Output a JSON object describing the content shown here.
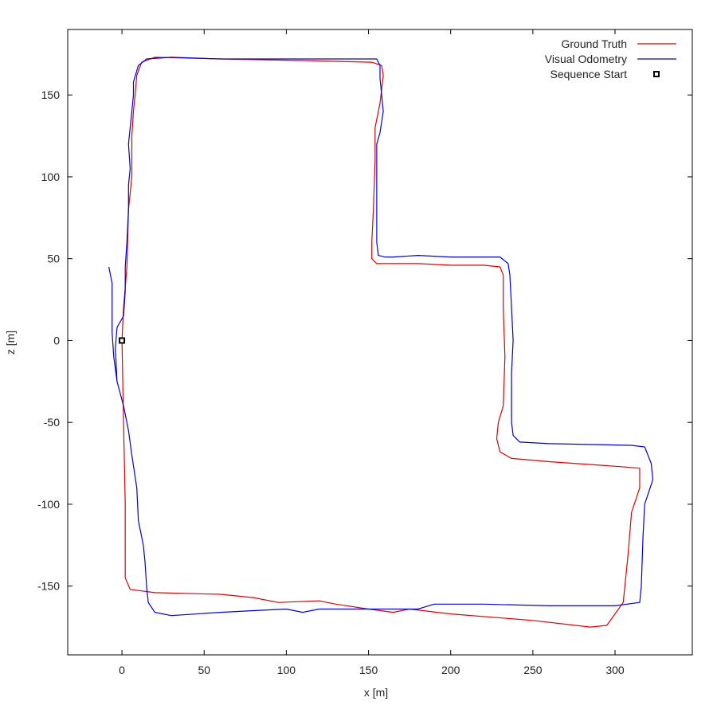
{
  "chart_data": {
    "type": "line",
    "title": "",
    "xlabel": "x [m]",
    "ylabel": "z [m]",
    "xlim": [
      -33,
      347
    ],
    "ylim": [
      -192,
      190
    ],
    "x_ticks": [
      0,
      50,
      100,
      150,
      200,
      250,
      300
    ],
    "y_ticks": [
      -150,
      -100,
      -50,
      0,
      50,
      100,
      150
    ],
    "x_tick_labels": [
      "0",
      "50",
      "100",
      "150",
      "200",
      "250",
      "300"
    ],
    "y_tick_labels": [
      "-150",
      "-100",
      "-50",
      "0",
      "50",
      "100",
      "150"
    ],
    "grid": false,
    "legend_position": "top-right",
    "series": [
      {
        "name": "Ground Truth",
        "color": "#e00000",
        "points": [
          [
            0,
            0
          ],
          [
            1,
            -50
          ],
          [
            2,
            -100
          ],
          [
            2,
            -145
          ],
          [
            5,
            -152
          ],
          [
            20,
            -154
          ],
          [
            60,
            -155
          ],
          [
            80,
            -157
          ],
          [
            95,
            -160
          ],
          [
            120,
            -159
          ],
          [
            130,
            -161
          ],
          [
            150,
            -164
          ],
          [
            165,
            -166
          ],
          [
            175,
            -164
          ],
          [
            200,
            -167
          ],
          [
            250,
            -171
          ],
          [
            285,
            -175
          ],
          [
            295,
            -174
          ],
          [
            305,
            -160
          ],
          [
            308,
            -130
          ],
          [
            310,
            -105
          ],
          [
            315,
            -90
          ],
          [
            315,
            -78
          ],
          [
            303,
            -77
          ],
          [
            260,
            -74
          ],
          [
            237,
            -72
          ],
          [
            230,
            -68
          ],
          [
            228,
            -60
          ],
          [
            229,
            -50
          ],
          [
            232,
            -40
          ],
          [
            233,
            -10
          ],
          [
            232,
            20
          ],
          [
            232,
            40
          ],
          [
            230,
            45
          ],
          [
            220,
            46
          ],
          [
            200,
            46
          ],
          [
            180,
            47
          ],
          [
            155,
            47
          ],
          [
            152,
            50
          ],
          [
            152,
            60
          ],
          [
            153,
            80
          ],
          [
            154,
            110
          ],
          [
            154,
            130
          ],
          [
            157,
            145
          ],
          [
            159,
            162
          ],
          [
            158,
            168
          ],
          [
            152,
            170
          ],
          [
            110,
            171
          ],
          [
            60,
            172
          ],
          [
            20,
            173
          ],
          [
            12,
            170
          ],
          [
            9,
            162
          ],
          [
            8,
            150
          ],
          [
            7,
            140
          ],
          [
            6,
            125
          ],
          [
            6,
            110
          ],
          [
            6,
            100
          ],
          [
            4,
            80
          ],
          [
            3,
            45
          ],
          [
            1,
            20
          ],
          [
            0,
            0
          ]
        ]
      },
      {
        "name": "Visual Odometry",
        "color": "#0000d8",
        "points": [
          [
            -8,
            45
          ],
          [
            -6,
            35
          ],
          [
            -6,
            20
          ],
          [
            -6,
            5
          ],
          [
            -5,
            -10
          ],
          [
            -3,
            -25
          ],
          [
            1,
            -40
          ],
          [
            4,
            -55
          ],
          [
            6,
            -70
          ],
          [
            9,
            -90
          ],
          [
            10,
            -110
          ],
          [
            13,
            -125
          ],
          [
            14,
            -135
          ],
          [
            15,
            -150
          ],
          [
            16,
            -160
          ],
          [
            20,
            -166
          ],
          [
            30,
            -168
          ],
          [
            60,
            -166
          ],
          [
            80,
            -165
          ],
          [
            100,
            -164
          ],
          [
            110,
            -166
          ],
          [
            120,
            -164
          ],
          [
            140,
            -164
          ],
          [
            165,
            -164
          ],
          [
            180,
            -164
          ],
          [
            190,
            -161
          ],
          [
            220,
            -161
          ],
          [
            260,
            -162
          ],
          [
            300,
            -162
          ],
          [
            315,
            -160
          ],
          [
            316,
            -150
          ],
          [
            317,
            -120
          ],
          [
            318,
            -100
          ],
          [
            323,
            -85
          ],
          [
            322,
            -75
          ],
          [
            318,
            -65
          ],
          [
            310,
            -64
          ],
          [
            260,
            -63
          ],
          [
            242,
            -62
          ],
          [
            238,
            -58
          ],
          [
            237,
            -50
          ],
          [
            237,
            -20
          ],
          [
            238,
            0
          ],
          [
            237,
            20
          ],
          [
            236,
            40
          ],
          [
            235,
            47
          ],
          [
            230,
            51
          ],
          [
            200,
            51
          ],
          [
            180,
            52
          ],
          [
            165,
            51
          ],
          [
            160,
            51
          ],
          [
            156,
            52
          ],
          [
            155,
            60
          ],
          [
            155,
            80
          ],
          [
            155,
            100
          ],
          [
            155,
            120
          ],
          [
            157,
            127
          ],
          [
            159,
            140
          ],
          [
            158,
            150
          ],
          [
            157,
            160
          ],
          [
            157,
            168
          ],
          [
            155,
            172
          ],
          [
            145,
            172
          ],
          [
            100,
            172
          ],
          [
            60,
            172
          ],
          [
            30,
            173
          ],
          [
            15,
            172
          ],
          [
            10,
            168
          ],
          [
            7,
            158
          ],
          [
            7,
            150
          ],
          [
            6,
            140
          ],
          [
            5,
            130
          ],
          [
            4,
            120
          ],
          [
            5,
            105
          ],
          [
            4,
            95
          ],
          [
            4,
            80
          ],
          [
            3,
            60
          ],
          [
            2,
            45
          ],
          [
            2,
            30
          ],
          [
            1,
            15
          ],
          [
            -3,
            8
          ],
          [
            -4,
            -5
          ],
          [
            -3,
            -25
          ]
        ]
      },
      {
        "name": "Sequence Start",
        "color": "#000000",
        "points": [
          [
            0,
            0
          ]
        ]
      }
    ]
  }
}
